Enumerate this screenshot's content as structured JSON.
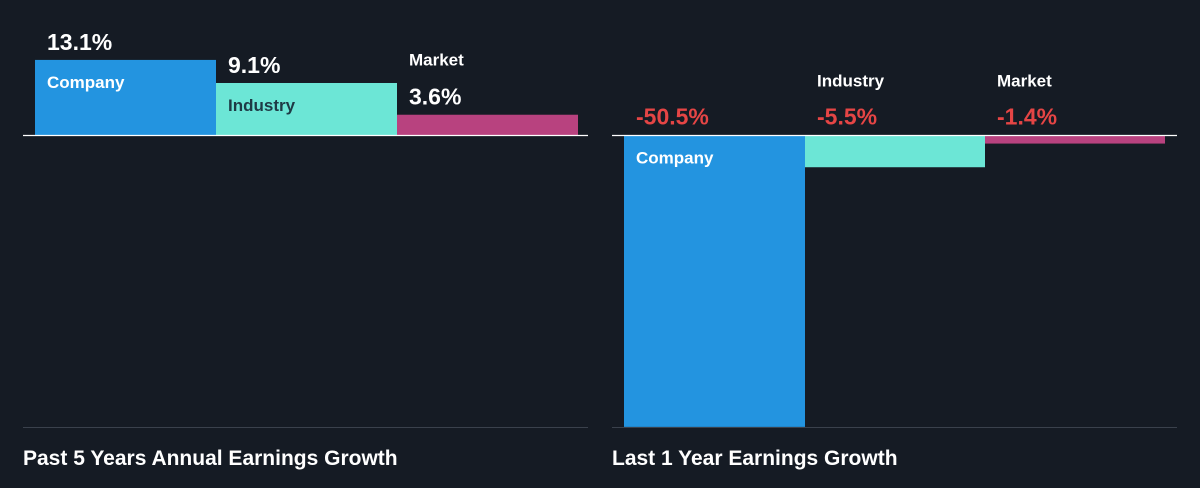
{
  "charts": [
    {
      "title": "Past 5 Years Annual Earnings Growth",
      "type": "bar",
      "categories": [
        "Company",
        "Industry",
        "Market"
      ],
      "values": [
        13.1,
        9.1,
        3.6
      ],
      "value_labels": [
        "13.1%",
        "9.1%",
        "3.6%"
      ],
      "colors": [
        "#2394e0",
        "#6ce6d6",
        "#b8427f"
      ]
    },
    {
      "title": "Last 1 Year Earnings Growth",
      "type": "bar",
      "categories": [
        "Company",
        "Industry",
        "Market"
      ],
      "values": [
        -50.5,
        -5.5,
        -1.4
      ],
      "value_labels": [
        "-50.5%",
        "-5.5%",
        "-1.4%"
      ],
      "colors": [
        "#2394e0",
        "#6ce6d6",
        "#b8427f"
      ]
    }
  ],
  "chart_data": [
    {
      "type": "bar",
      "title": "Past 5 Years Annual Earnings Growth",
      "categories": [
        "Company",
        "Industry",
        "Market"
      ],
      "values": [
        13.1,
        9.1,
        3.6
      ],
      "unit": "%",
      "grid": false
    },
    {
      "type": "bar",
      "title": "Last 1 Year Earnings Growth",
      "categories": [
        "Company",
        "Industry",
        "Market"
      ],
      "values": [
        -50.5,
        -5.5,
        -1.4
      ],
      "unit": "%",
      "grid": false
    }
  ],
  "style": {
    "background": "#151b24",
    "positive_label_color": "#ffffff",
    "negative_label_color": "#e54545"
  }
}
